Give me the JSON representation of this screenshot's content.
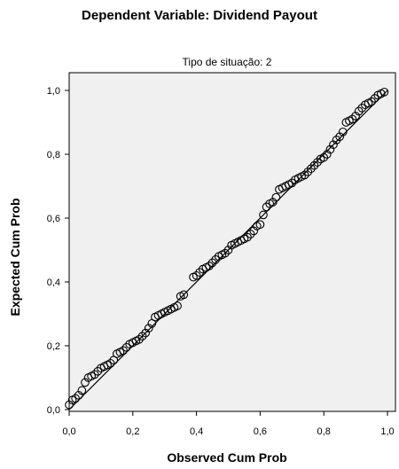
{
  "chart_data": {
    "type": "scatter",
    "title": "Dependent Variable: Dividend Payout",
    "subtitle": "Tipo de situação: 2",
    "xlabel": "Observed Cum Prob",
    "ylabel": "Expected Cum Prob",
    "xlim": [
      0,
      1
    ],
    "ylim": [
      0,
      1
    ],
    "xticks": [
      "0,0",
      "0,2",
      "0,4",
      "0,6",
      "0,8",
      "1,0"
    ],
    "yticks": [
      "0,0",
      "0,2",
      "0,4",
      "0,6",
      "0,8",
      "1,0"
    ],
    "grid": false,
    "legend": "none",
    "reference_line": [
      [
        0,
        0
      ],
      [
        1,
        1
      ]
    ],
    "series": [
      {
        "points": [
          [
            0.0,
            0.015
          ],
          [
            0.01,
            0.03
          ],
          [
            0.02,
            0.035
          ],
          [
            0.03,
            0.045
          ],
          [
            0.04,
            0.06
          ],
          [
            0.05,
            0.085
          ],
          [
            0.06,
            0.1
          ],
          [
            0.07,
            0.105
          ],
          [
            0.08,
            0.11
          ],
          [
            0.09,
            0.12
          ],
          [
            0.1,
            0.13
          ],
          [
            0.11,
            0.135
          ],
          [
            0.12,
            0.14
          ],
          [
            0.13,
            0.145
          ],
          [
            0.14,
            0.155
          ],
          [
            0.15,
            0.175
          ],
          [
            0.16,
            0.18
          ],
          [
            0.17,
            0.185
          ],
          [
            0.18,
            0.195
          ],
          [
            0.19,
            0.205
          ],
          [
            0.2,
            0.21
          ],
          [
            0.21,
            0.215
          ],
          [
            0.22,
            0.22
          ],
          [
            0.23,
            0.23
          ],
          [
            0.24,
            0.24
          ],
          [
            0.25,
            0.255
          ],
          [
            0.26,
            0.27
          ],
          [
            0.27,
            0.29
          ],
          [
            0.28,
            0.295
          ],
          [
            0.29,
            0.3
          ],
          [
            0.3,
            0.305
          ],
          [
            0.31,
            0.31
          ],
          [
            0.32,
            0.315
          ],
          [
            0.33,
            0.32
          ],
          [
            0.34,
            0.325
          ],
          [
            0.35,
            0.355
          ],
          [
            0.36,
            0.36
          ],
          [
            0.39,
            0.415
          ],
          [
            0.4,
            0.42
          ],
          [
            0.41,
            0.43
          ],
          [
            0.42,
            0.44
          ],
          [
            0.43,
            0.445
          ],
          [
            0.44,
            0.45
          ],
          [
            0.45,
            0.46
          ],
          [
            0.46,
            0.47
          ],
          [
            0.47,
            0.48
          ],
          [
            0.48,
            0.485
          ],
          [
            0.49,
            0.49
          ],
          [
            0.5,
            0.5
          ],
          [
            0.51,
            0.515
          ],
          [
            0.52,
            0.52
          ],
          [
            0.53,
            0.525
          ],
          [
            0.54,
            0.53
          ],
          [
            0.55,
            0.535
          ],
          [
            0.56,
            0.54
          ],
          [
            0.57,
            0.55
          ],
          [
            0.58,
            0.56
          ],
          [
            0.59,
            0.575
          ],
          [
            0.6,
            0.58
          ],
          [
            0.61,
            0.61
          ],
          [
            0.62,
            0.635
          ],
          [
            0.63,
            0.645
          ],
          [
            0.64,
            0.65
          ],
          [
            0.65,
            0.665
          ],
          [
            0.66,
            0.69
          ],
          [
            0.67,
            0.695
          ],
          [
            0.68,
            0.7
          ],
          [
            0.69,
            0.705
          ],
          [
            0.7,
            0.71
          ],
          [
            0.71,
            0.72
          ],
          [
            0.72,
            0.725
          ],
          [
            0.73,
            0.73
          ],
          [
            0.74,
            0.735
          ],
          [
            0.75,
            0.745
          ],
          [
            0.76,
            0.755
          ],
          [
            0.77,
            0.765
          ],
          [
            0.78,
            0.775
          ],
          [
            0.79,
            0.785
          ],
          [
            0.8,
            0.79
          ],
          [
            0.81,
            0.8
          ],
          [
            0.82,
            0.815
          ],
          [
            0.83,
            0.83
          ],
          [
            0.84,
            0.845
          ],
          [
            0.85,
            0.855
          ],
          [
            0.86,
            0.87
          ],
          [
            0.87,
            0.9
          ],
          [
            0.88,
            0.905
          ],
          [
            0.89,
            0.91
          ],
          [
            0.9,
            0.92
          ],
          [
            0.91,
            0.935
          ],
          [
            0.92,
            0.945
          ],
          [
            0.93,
            0.955
          ],
          [
            0.94,
            0.96
          ],
          [
            0.95,
            0.965
          ],
          [
            0.96,
            0.975
          ],
          [
            0.97,
            0.985
          ],
          [
            0.98,
            0.99
          ],
          [
            0.99,
            0.995
          ]
        ]
      }
    ]
  }
}
